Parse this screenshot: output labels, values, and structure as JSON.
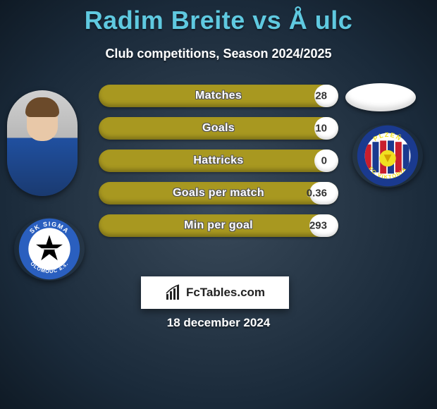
{
  "title": "Radim Breite vs Å ulc",
  "subtitle": "Club competitions, Season 2024/2025",
  "date": "18 december 2024",
  "branding": {
    "label": "FcTables.com"
  },
  "colors": {
    "accent_title": "#5fc9e0",
    "bar_bg": "#a89820",
    "bar_fill": "#ffffff",
    "page_bg_inner": "#3a4a5a",
    "page_bg_outer": "#0f1a25"
  },
  "stats": [
    {
      "label": "Matches",
      "value": "28",
      "fill_pct": 10
    },
    {
      "label": "Goals",
      "value": "10",
      "fill_pct": 10
    },
    {
      "label": "Hattricks",
      "value": "0",
      "fill_pct": 10
    },
    {
      "label": "Goals per match",
      "value": "0.36",
      "fill_pct": 12
    },
    {
      "label": "Min per goal",
      "value": "293",
      "fill_pct": 12
    }
  ],
  "left_club": {
    "name": "SK Sigma Olomouc",
    "ring_text_top": "SK SIGMA",
    "ring_text_bottom": "OLOMOUC a.s.",
    "ring_color": "#2a5fbf",
    "inner_bg": "#ffffff",
    "star_color": "#000000"
  },
  "right_club": {
    "name": "FC Viktoria Plzeň",
    "ring_text_top": "PLZEŇ",
    "ring_text_bottom": "FC VIKTORIA",
    "outer_color": "#1a3a8f",
    "stripe_red": "#c81e2d",
    "stripe_blue": "#1a3a8f",
    "center_bg": "#ffffff"
  }
}
